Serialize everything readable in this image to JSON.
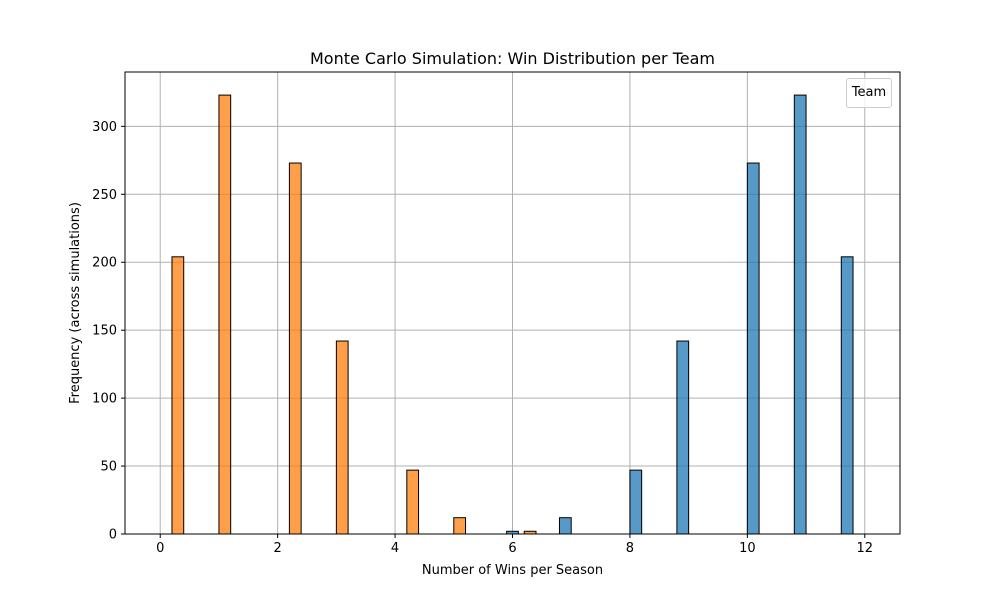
{
  "chart_data": {
    "type": "bar",
    "title": "Monte Carlo Simulation: Win Distribution per Team",
    "xlabel": "Number of Wins per Season",
    "ylabel": "Frequency (across simulations)",
    "xlim": [
      -0.6,
      12.6
    ],
    "ylim": [
      0,
      340
    ],
    "xticks": [
      0,
      2,
      4,
      6,
      8,
      10,
      12
    ],
    "yticks": [
      0,
      50,
      100,
      150,
      200,
      250,
      300
    ],
    "grid": true,
    "legend": {
      "title": "Team",
      "placement": "top-right",
      "entries": []
    },
    "bar_width": 0.2,
    "series": [
      {
        "color": "#1f77b4",
        "x": [
          6.0,
          6.9,
          8.1,
          8.9,
          10.1,
          10.9,
          11.7
        ],
        "values": [
          2,
          12,
          47,
          142,
          273,
          323,
          204
        ]
      },
      {
        "color": "#ff7f0e",
        "x": [
          0.3,
          1.1,
          2.3,
          3.1,
          4.3,
          5.1,
          6.3
        ],
        "values": [
          204,
          323,
          273,
          142,
          47,
          12,
          2
        ]
      }
    ]
  }
}
